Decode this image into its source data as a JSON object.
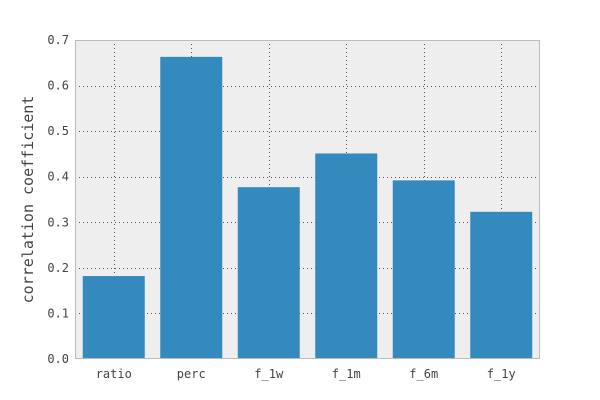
{
  "chart_data": {
    "type": "bar",
    "title": "",
    "xlabel": "",
    "ylabel": "correlation coefficient",
    "categories": [
      "ratio",
      "perc",
      "f_1w",
      "f_1m",
      "f_6m",
      "f_1y"
    ],
    "values": [
      0.182,
      0.663,
      0.377,
      0.451,
      0.392,
      0.323
    ],
    "ylim": [
      0.0,
      0.7
    ],
    "yticks": [
      "0.0",
      "0.1",
      "0.2",
      "0.3",
      "0.4",
      "0.5",
      "0.6",
      "0.7"
    ],
    "grid": true,
    "bar_color": "#348abd",
    "plot_background": "#eeeeee",
    "frame_color": "#bcbcbc"
  }
}
